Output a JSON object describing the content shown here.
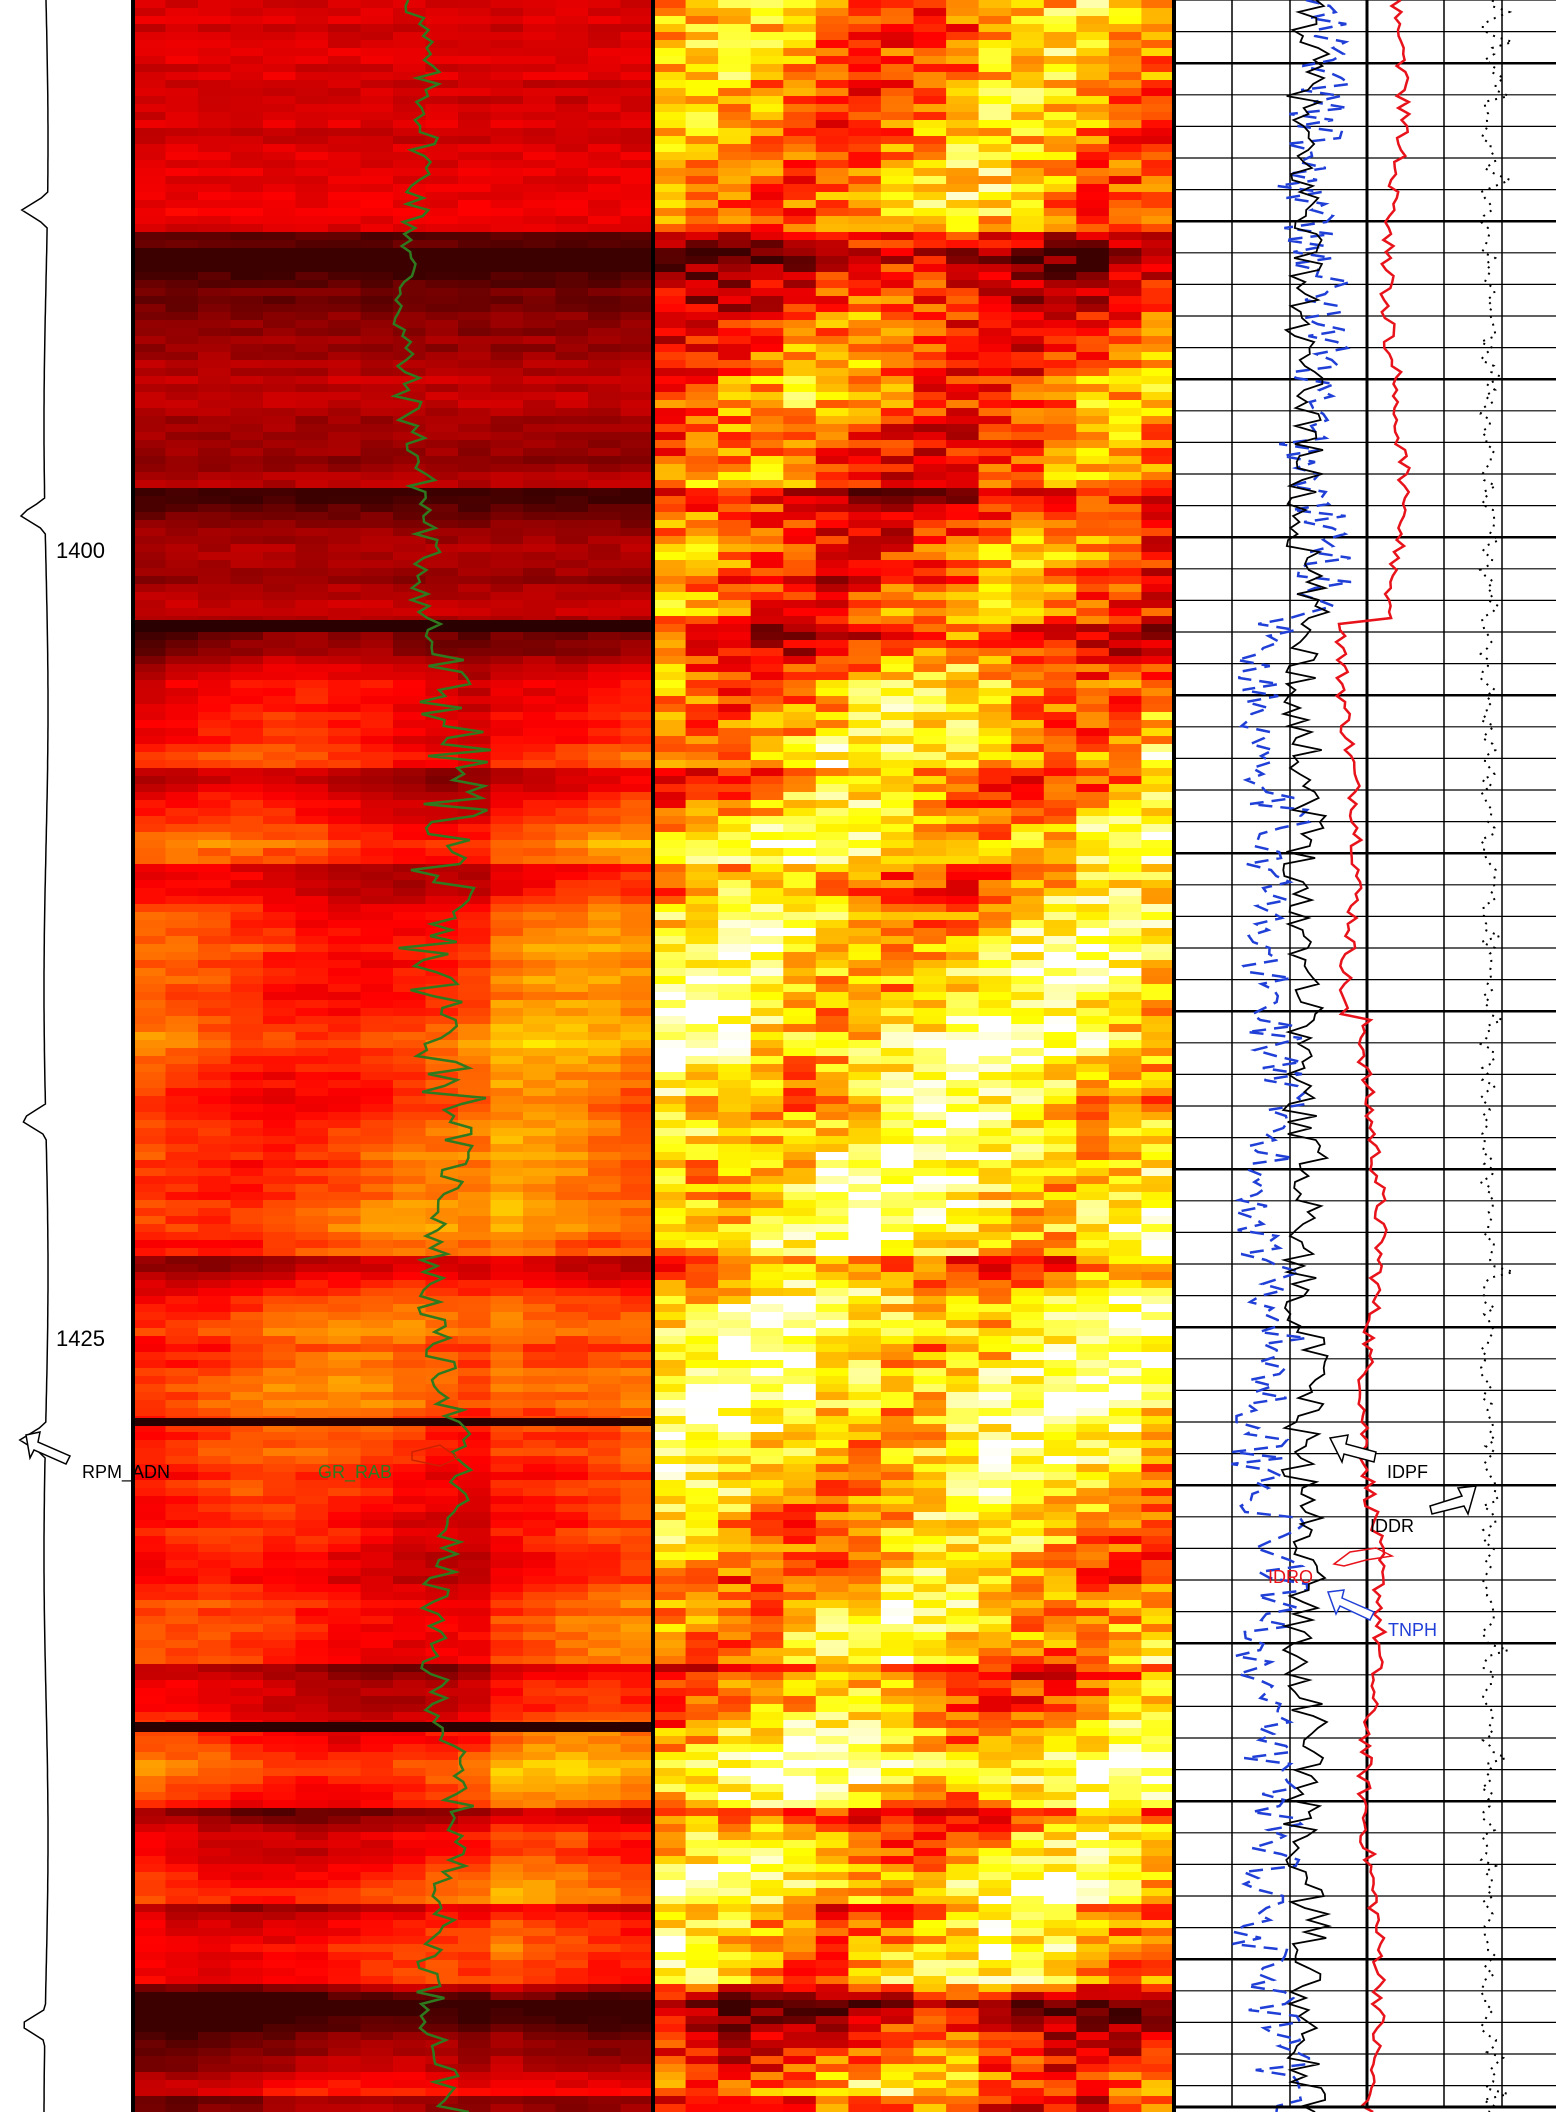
{
  "depth_labels": [
    {
      "depth": 1400,
      "text": "1400"
    },
    {
      "depth": 1425,
      "text": "1425"
    }
  ],
  "curve_labels": {
    "rpm": "RPM_ADN",
    "gr": "GR_RAB",
    "idpf": "IDPF",
    "iddr": "IDDR",
    "idro": "IDRO",
    "tnph": "TNPH"
  },
  "colors": {
    "gr_curve": "#2f7a1f",
    "idro_curve": "#e8121a",
    "tnph_curve": "#1f3fd6",
    "idpf_curve": "#000000",
    "iddr_curve": "#000000",
    "grid": "#000000"
  },
  "chart_data": {
    "type": "line",
    "depth_range": [
      1383,
      1450
    ],
    "colormap": "hot",
    "tracks": [
      {
        "name": "RPM_ADN",
        "kind": "curve"
      },
      {
        "name": "GR_RAB",
        "kind": "image+curve"
      },
      {
        "name": "",
        "kind": "image"
      },
      {
        "name": "IDPF IDDR IDRO TNPH",
        "kind": "curves",
        "grid": true
      }
    ]
  }
}
